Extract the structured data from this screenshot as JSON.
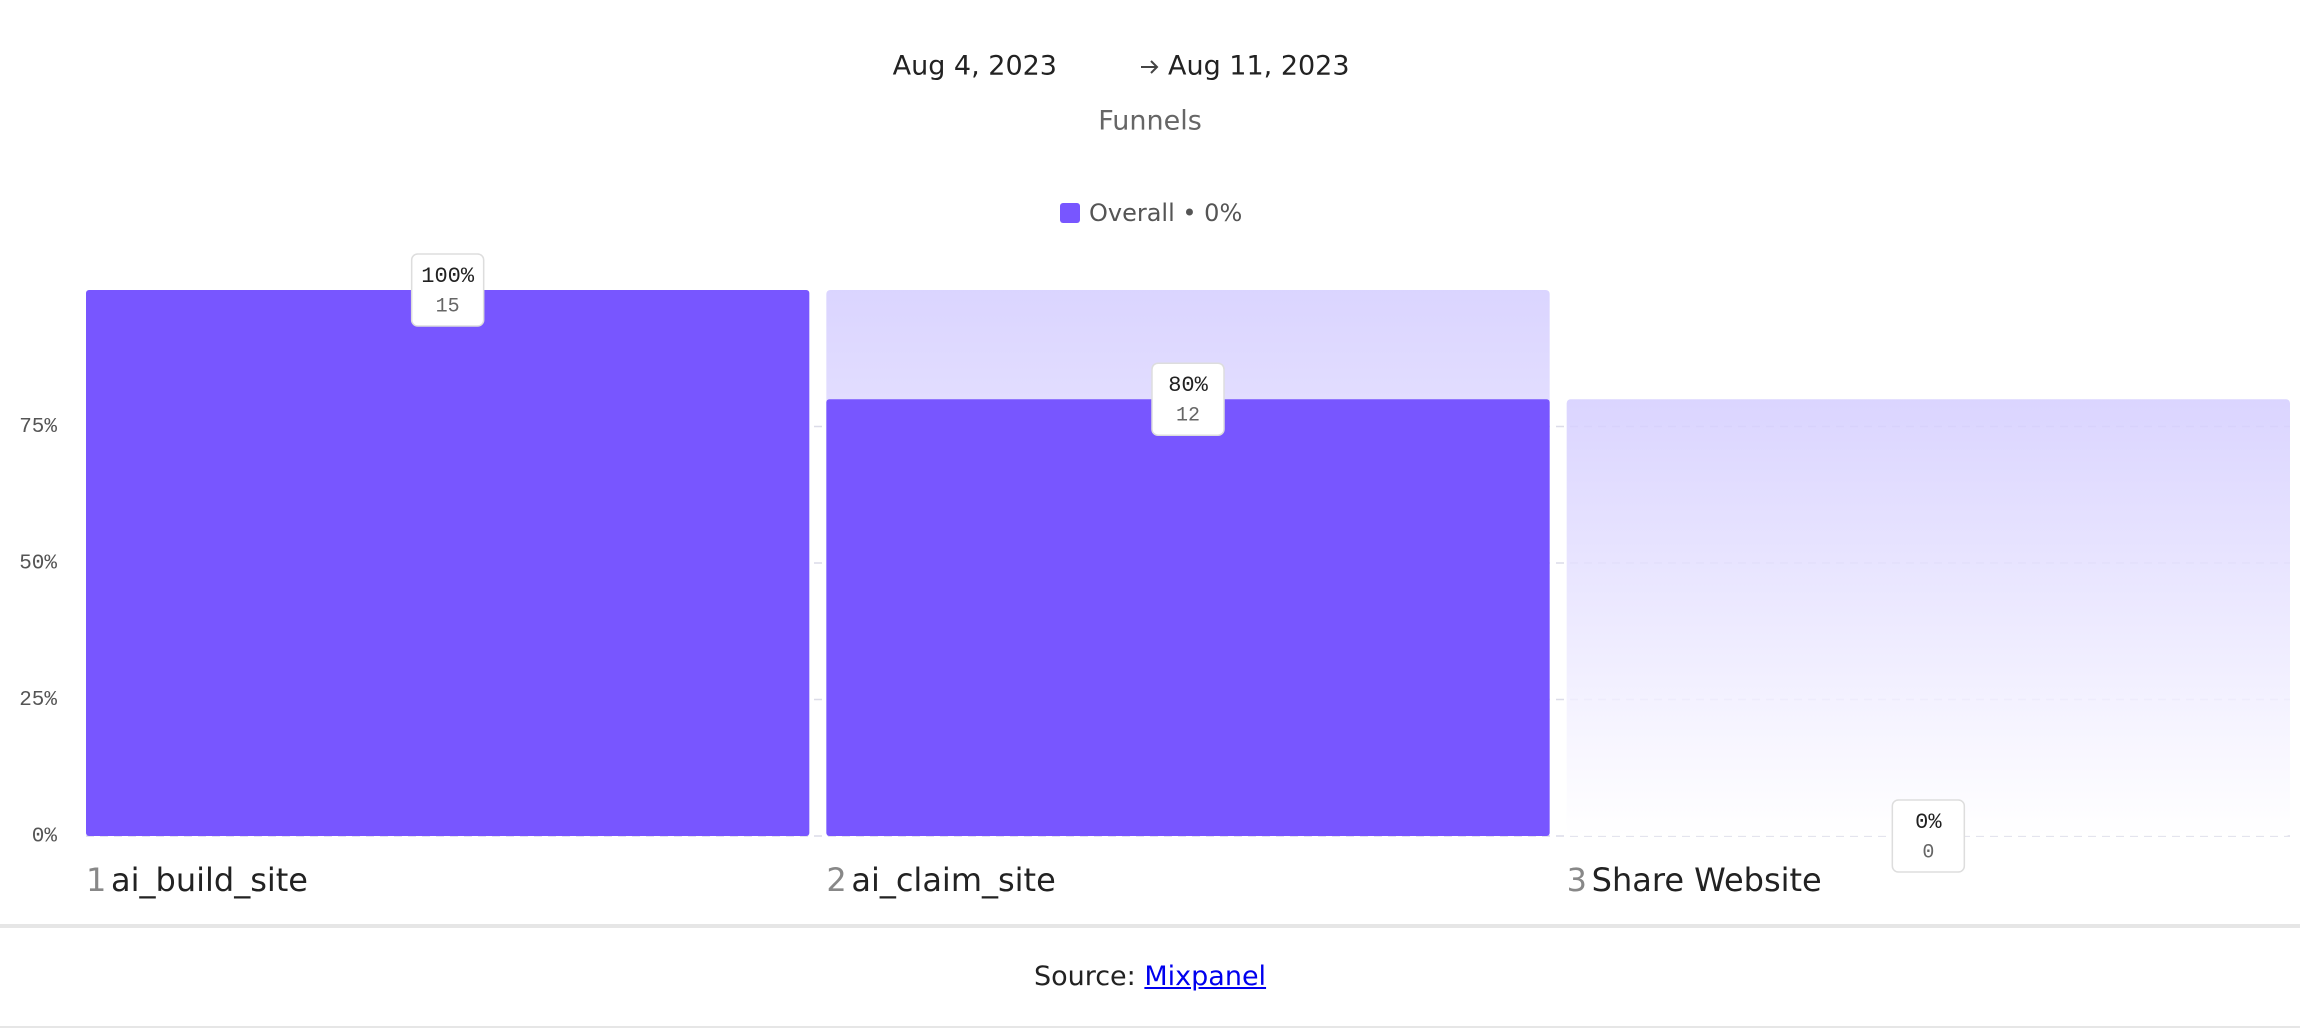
{
  "header": {
    "date_start": "Aug 4, 2023",
    "date_end": "Aug 11, 2023",
    "subtitle": "Funnels"
  },
  "chart_data": {
    "type": "funnel",
    "categories": [
      "ai_build_site",
      "ai_claim_site",
      "Share Website"
    ],
    "step_labels": [
      "1",
      "2",
      "3"
    ],
    "series": [
      {
        "name": "Overall • 0%",
        "color": "#7856ff",
        "values": [
          100,
          80,
          0
        ],
        "value_labels": [
          "100%",
          "80%",
          "0%"
        ],
        "counts": [
          15,
          12,
          0
        ]
      }
    ],
    "ylim": [
      0,
      100
    ],
    "yticks": [
      {
        "value": 0,
        "label": "0%"
      },
      {
        "value": 25,
        "label": "25%"
      },
      {
        "value": 50,
        "label": "50%"
      },
      {
        "value": 75,
        "label": "75%"
      }
    ],
    "grid": true
  },
  "footer": {
    "source_label": "Source:",
    "link": "Mixpanel"
  }
}
